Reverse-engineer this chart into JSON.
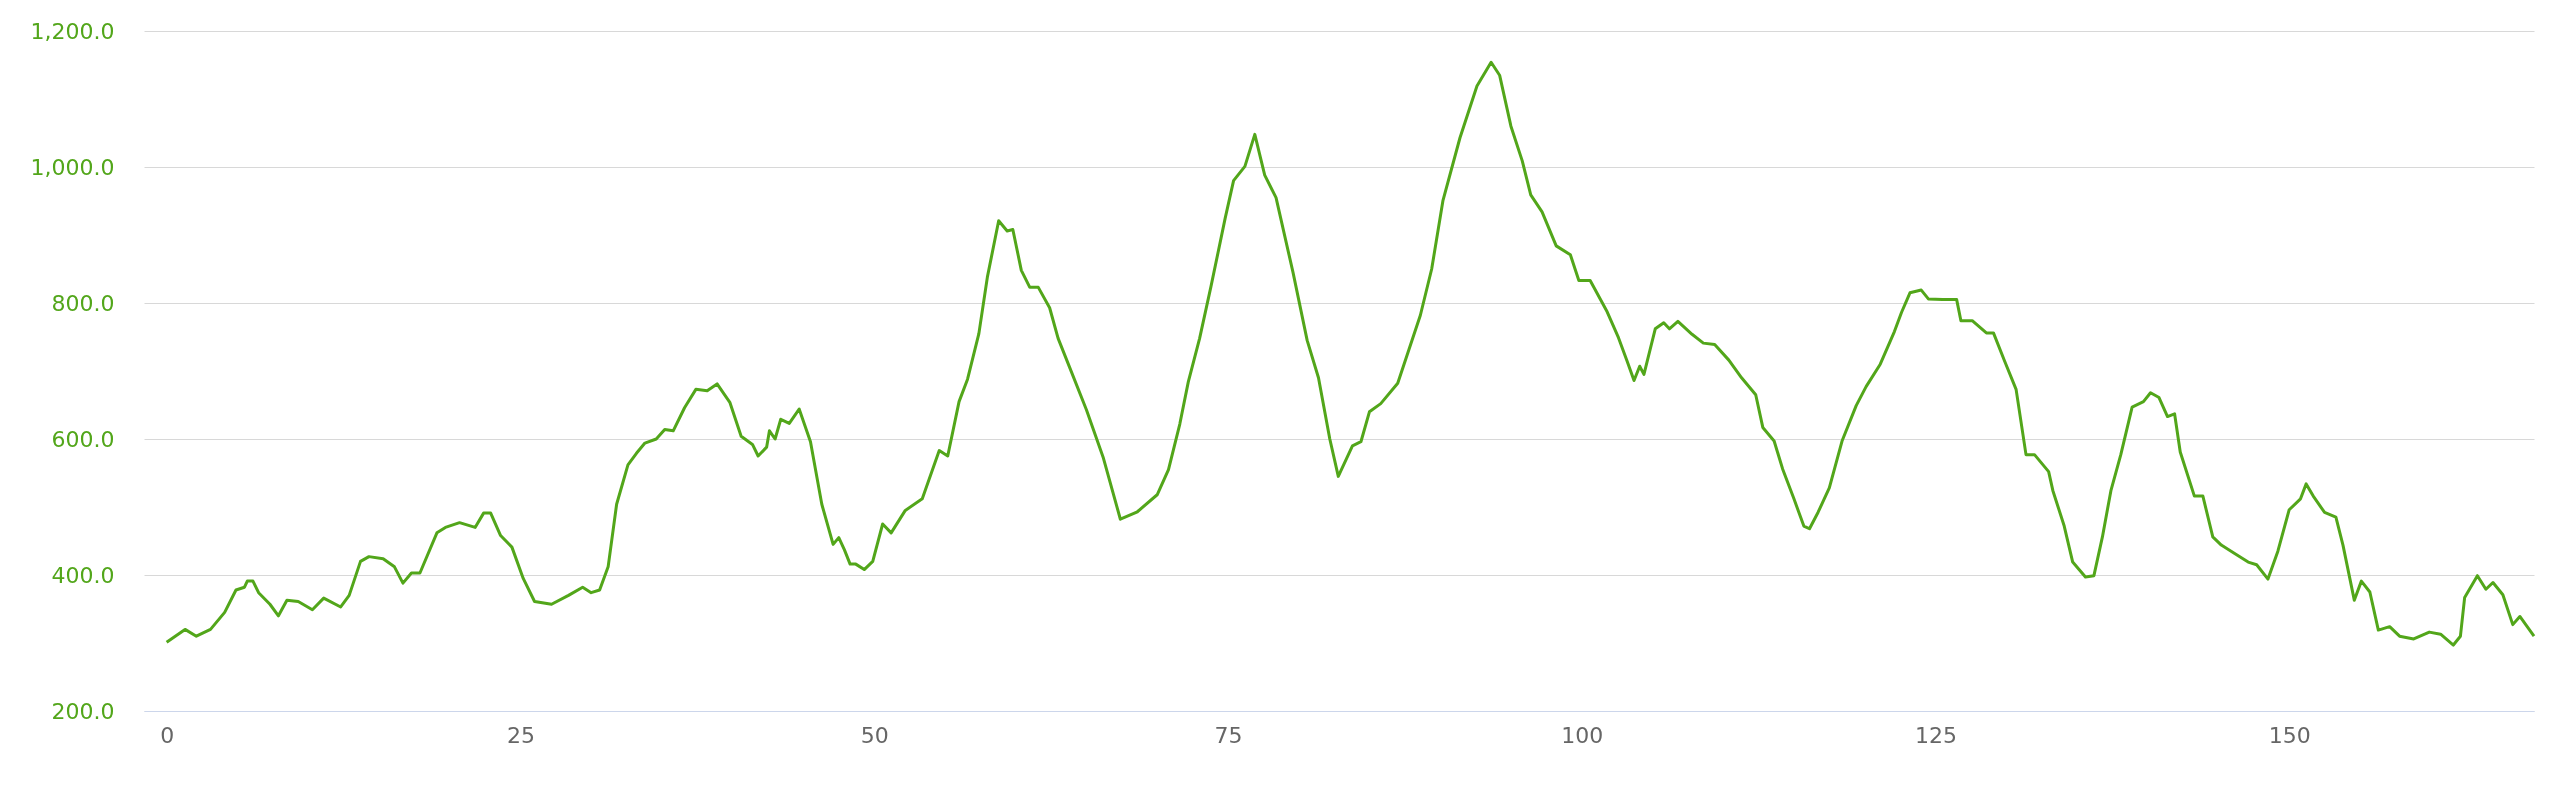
{
  "chart_data": {
    "type": "line",
    "line_style": "solid",
    "marker": "none",
    "grid": "y",
    "xlim": [
      -1.6,
      167.3
    ],
    "ylim": [
      200,
      1200
    ],
    "xticks": [
      0,
      25,
      50,
      75,
      100,
      125,
      150
    ],
    "yticks": [
      {
        "value": 200,
        "label": "200.0"
      },
      {
        "value": 400,
        "label": "400.0"
      },
      {
        "value": 600,
        "label": "600.0"
      },
      {
        "value": 800,
        "label": "800.0"
      },
      {
        "value": 1000,
        "label": "1,000.0"
      },
      {
        "value": 1200,
        "label": "1,200.0"
      }
    ],
    "series": [
      {
        "color": "#52a61a",
        "x": [
          0,
          1.3,
          2.1,
          3.1,
          4.1,
          4.9,
          5.5,
          5.7,
          6.1,
          6.5,
          7.3,
          7.9,
          8.5,
          9.3,
          10.3,
          11.1,
          12.3,
          12.9,
          13.7,
          14.3,
          15.3,
          16.1,
          16.7,
          17.3,
          17.9,
          19.1,
          19.7,
          20.7,
          21.8,
          22.4,
          22.9,
          23.6,
          24.4,
          25.2,
          26.0,
          27.2,
          28.4,
          29.4,
          30.0,
          30.6,
          31.2,
          31.8,
          32.6,
          33.2,
          33.8,
          34.6,
          35.2,
          35.8,
          36.6,
          37.4,
          38.2,
          38.9,
          39.8,
          40.6,
          41.4,
          41.8,
          42.4,
          42.6,
          43.0,
          43.4,
          44.0,
          44.7,
          45.5,
          46.3,
          47.1,
          47.5,
          47.9,
          48.3,
          48.7,
          49.3,
          49.9,
          50.6,
          51.2,
          52.2,
          53.4,
          54.6,
          55.2,
          56.0,
          56.6,
          57.4,
          58.0,
          58.8,
          59.4,
          59.8,
          60.4,
          61.0,
          61.6,
          62.4,
          63.0,
          63.8,
          65.0,
          66.2,
          67.4,
          68.6,
          70.0,
          70.8,
          71.6,
          72.2,
          73.0,
          73.8,
          74.8,
          75.4,
          76.2,
          76.9,
          77.6,
          78.4,
          79.6,
          80.6,
          81.4,
          82.2,
          82.8,
          83.8,
          84.4,
          85.0,
          85.8,
          87.0,
          87.8,
          88.6,
          89.4,
          90.2,
          91.4,
          92.6,
          93.6,
          94.2,
          95.0,
          95.8,
          96.4,
          97.2,
          98.2,
          99.2,
          99.8,
          100.6,
          101.8,
          102.6,
          103.2,
          103.7,
          104.1,
          104.4,
          105.2,
          105.8,
          106.2,
          106.8,
          107.8,
          108.6,
          109.4,
          110.4,
          111.3,
          112.3,
          112.8,
          113.6,
          114.2,
          115.0,
          115.7,
          116.1,
          116.7,
          117.5,
          118.4,
          119.4,
          120.1,
          121.1,
          122.1,
          122.6,
          123.2,
          124.0,
          124.5,
          125.5,
          126.5,
          126.8,
          127.6,
          128.6,
          129.1,
          129.9,
          130.7,
          131.4,
          132.0,
          133.0,
          133.3,
          134.1,
          134.7,
          135.6,
          136.2,
          136.8,
          137.4,
          138.1,
          138.9,
          139.7,
          140.2,
          140.8,
          141.4,
          141.9,
          142.3,
          143.3,
          143.9,
          144.6,
          145.2,
          146.2,
          147.1,
          147.7,
          148.5,
          149.2,
          150.0,
          150.8,
          151.2,
          151.7,
          152.5,
          153.3,
          153.8,
          154.6,
          155.1,
          155.7,
          156.3,
          157.1,
          157.8,
          158.8,
          159.9,
          160.7,
          161.6,
          162.1,
          162.4,
          163.3,
          163.9,
          164.4,
          165.1,
          165.8,
          166.3,
          167.3
        ],
        "values": [
          301,
          320,
          310,
          320,
          345,
          378,
          382,
          391,
          391,
          374,
          357,
          340,
          363,
          361,
          349,
          366,
          353,
          370,
          420,
          427,
          424,
          412,
          388,
          403,
          403,
          462,
          470,
          477,
          470,
          491,
          491,
          458,
          441,
          395,
          361,
          357,
          370,
          382,
          374,
          378,
          412,
          504,
          562,
          579,
          594,
          600,
          614,
          612,
          646,
          673,
          671,
          681,
          654,
          604,
          592,
          575,
          588,
          612,
          600,
          629,
          623,
          644,
          596,
          504,
          445,
          455,
          437,
          416,
          416,
          408,
          420,
          475,
          462,
          495,
          512,
          583,
          575,
          655,
          688,
          755,
          838,
          921,
          906,
          908,
          848,
          823,
          823,
          793,
          748,
          706,
          643,
          572,
          482,
          493,
          518,
          555,
          622,
          684,
          748,
          824,
          924,
          980,
          1001,
          1048,
          988,
          955,
          845,
          745,
          690,
          600,
          545,
          590,
          596,
          640,
          652,
          682,
          732,
          782,
          850,
          951,
          1043,
          1119,
          1154,
          1135,
          1060,
          1009,
          959,
          934,
          884,
          871,
          833,
          833,
          787,
          749,
          715,
          686,
          707,
          695,
          762,
          771,
          762,
          773,
          754,
          741,
          739,
          716,
          690,
          665,
          617,
          597,
          556,
          512,
          472,
          468,
          492,
          528,
          597,
          649,
          677,
          710,
          758,
          786,
          815,
          819,
          806,
          805,
          805,
          774,
          774,
          756,
          756,
          714,
          673,
          577,
          577,
          552,
          524,
          472,
          419,
          397,
          399,
          456,
          524,
          577,
          647,
          655,
          668,
          661,
          633,
          637,
          581,
          516,
          516,
          456,
          444,
          431,
          419,
          415,
          394,
          435,
          496,
          512,
          534,
          516,
          492,
          485,
          444,
          363,
          391,
          375,
          319,
          324,
          310,
          306,
          316,
          313,
          297,
          310,
          367,
          399,
          379,
          389,
          371,
          327,
          339,
          310
        ]
      }
    ]
  }
}
